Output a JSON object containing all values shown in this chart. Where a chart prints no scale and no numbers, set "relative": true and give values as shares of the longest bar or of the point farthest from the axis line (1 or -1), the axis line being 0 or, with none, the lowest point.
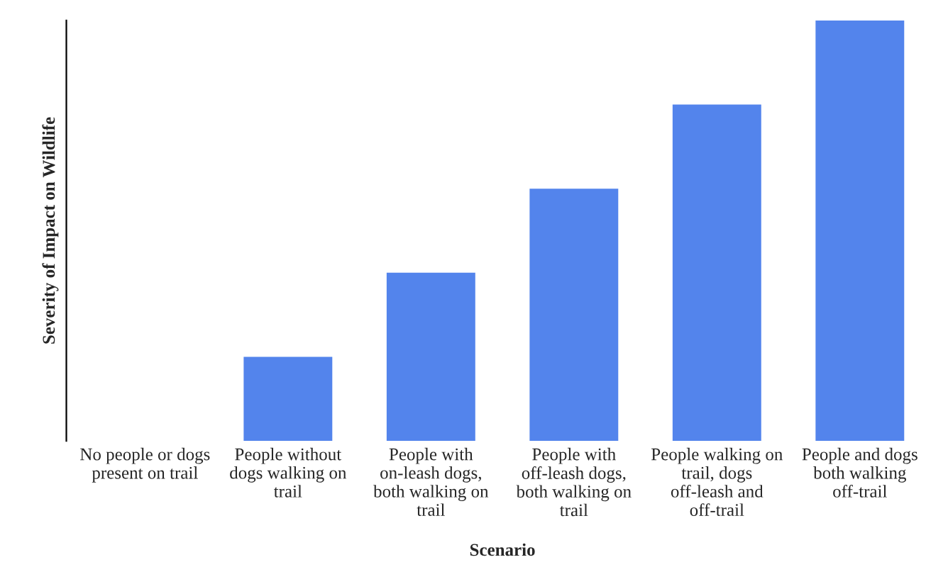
{
  "chart_data": {
    "type": "bar",
    "relative": true,
    "xlabel": "Scenario",
    "ylabel": "Severity of Impact on Wildlife",
    "categories": [
      "No people or dogs\npresent on trail",
      "People without\ndogs walking on\ntrail",
      "People with\non-leash dogs,\nboth walking on\ntrail",
      "People with\noff-leash dogs,\nboth walking on\ntrail",
      "People walking on\ntrail, dogs\noff-leash and\noff-trail",
      "People and dogs\nboth walking\noff-trail"
    ],
    "values": [
      0,
      0.2,
      0.4,
      0.6,
      0.8,
      1.0
    ],
    "color": "#5384ec",
    "grid": false,
    "legend": false
  }
}
